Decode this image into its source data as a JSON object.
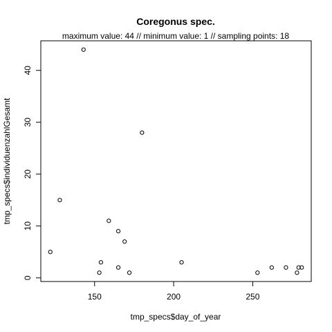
{
  "chart_data": {
    "type": "scatter",
    "title": "Coregonus spec.",
    "subtitle": "maximum value: 44  //  minimum value: 1  // sampling points: 18",
    "xlabel": "tmp_specs$day_of_year",
    "ylabel": "tmp_specs$individuenzahlGesamt",
    "xlim": [
      116,
      287
    ],
    "ylim": [
      -0.7,
      45.7
    ],
    "x_ticks": [
      150,
      200,
      250
    ],
    "y_ticks": [
      0,
      10,
      20,
      30,
      40
    ],
    "grid": false,
    "legend": "none",
    "marker": "open-circle",
    "points": [
      {
        "x": 122,
        "y": 5
      },
      {
        "x": 128,
        "y": 15
      },
      {
        "x": 143,
        "y": 44
      },
      {
        "x": 153,
        "y": 1
      },
      {
        "x": 154,
        "y": 3
      },
      {
        "x": 159,
        "y": 11
      },
      {
        "x": 165,
        "y": 9
      },
      {
        "x": 165,
        "y": 2
      },
      {
        "x": 169,
        "y": 7
      },
      {
        "x": 172,
        "y": 1
      },
      {
        "x": 180,
        "y": 28
      },
      {
        "x": 205,
        "y": 3
      },
      {
        "x": 253,
        "y": 1
      },
      {
        "x": 262,
        "y": 2
      },
      {
        "x": 271,
        "y": 2
      },
      {
        "x": 278,
        "y": 1
      },
      {
        "x": 279,
        "y": 2
      },
      {
        "x": 281,
        "y": 2
      }
    ]
  }
}
